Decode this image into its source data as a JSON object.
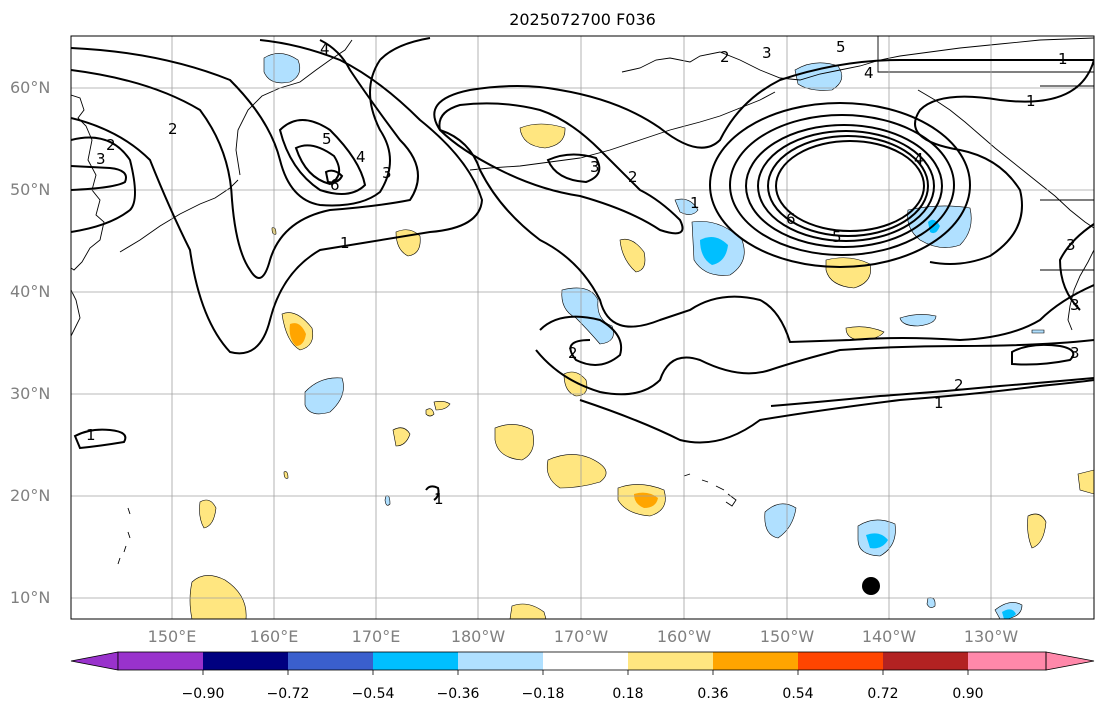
{
  "map": {
    "title": "2025072700 F036",
    "lat_labels": [
      "60°N",
      "50°N",
      "40°N",
      "30°N",
      "20°N",
      "10°N"
    ],
    "lon_labels": [
      "150°E",
      "160°E",
      "170°E",
      "180°W",
      "170°W",
      "160°W",
      "150°W",
      "140°W",
      "130°W"
    ],
    "contour_labels": [
      "1",
      "2",
      "3",
      "4",
      "5",
      "6"
    ],
    "colors": {
      "land_outline": "#000000",
      "grid": "#a0a0a0",
      "contour": "#000000",
      "marker": "#000000"
    }
  },
  "colorbar": {
    "ticks": [
      "−0.90",
      "−0.72",
      "−0.54",
      "−0.36",
      "−0.18",
      "0.18",
      "0.36",
      "0.54",
      "0.72",
      "0.90"
    ],
    "colors": [
      "#9932cc",
      "#000080",
      "#3a5fcd",
      "#00bfff",
      "#b0e0ff",
      "#ffffff",
      "#ffe680",
      "#ffa500",
      "#ff4500",
      "#b22222",
      "#ff88aa"
    ]
  }
}
